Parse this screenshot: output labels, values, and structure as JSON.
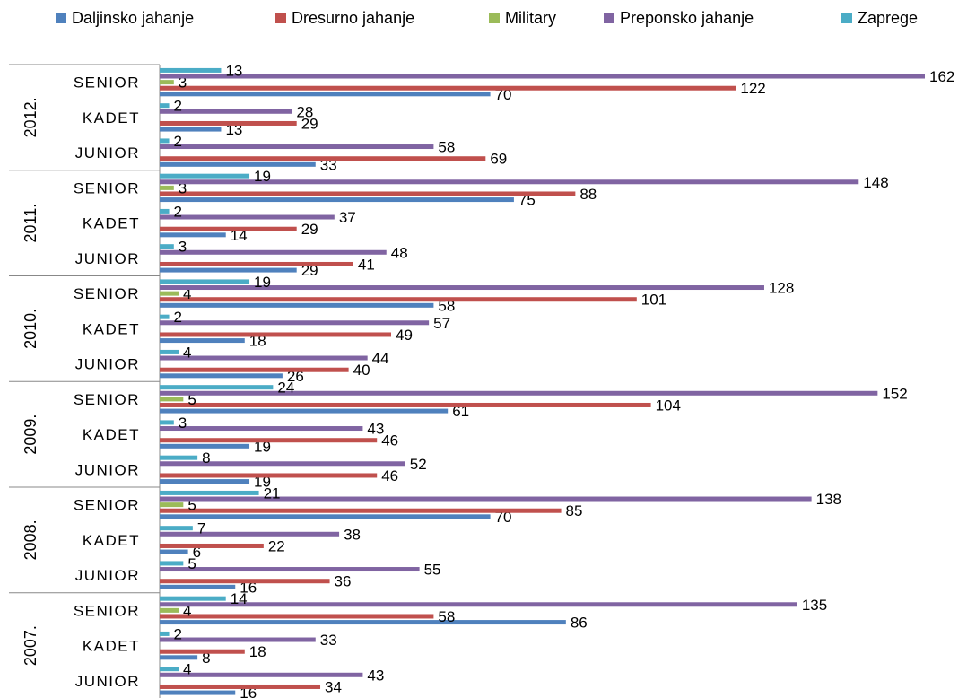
{
  "chart_data": {
    "type": "bar",
    "orientation": "horizontal",
    "title": "",
    "xlabel": "",
    "ylabel": "",
    "xlim": [
      0,
      162
    ],
    "grid": false,
    "legend_position": "top",
    "series_draw_order_bottom_to_top": [
      "Daljinsko jahanje",
      "Dresurno jahanje",
      "Military",
      "Preponsko jahanje",
      "Zaprege"
    ],
    "series": [
      {
        "name": "Daljinsko jahanje",
        "color": "#4F81BD"
      },
      {
        "name": "Dresurno jahanje",
        "color": "#C0504D"
      },
      {
        "name": "Military",
        "color": "#9BBB59"
      },
      {
        "name": "Preponsko jahanje",
        "color": "#8064A2"
      },
      {
        "name": "Zaprege",
        "color": "#4BACC6"
      }
    ],
    "legend": {
      "items": [
        {
          "label": "Daljinsko jahanje",
          "color": "#4F81BD"
        },
        {
          "label": "Dresurno jahanje",
          "color": "#C0504D"
        },
        {
          "label": "Military",
          "color": "#9BBB59"
        },
        {
          "label": "Preponsko jahanje",
          "color": "#8064A2"
        },
        {
          "label": "Zaprege",
          "color": "#4BACC6"
        }
      ]
    },
    "groups": [
      {
        "year": "2012.",
        "categories": [
          {
            "label": "SENIOR",
            "values": {
              "Daljinsko jahanje": 70,
              "Dresurno jahanje": 122,
              "Military": 3,
              "Preponsko jahanje": 162,
              "Zaprege": 13
            }
          },
          {
            "label": "KADET",
            "values": {
              "Daljinsko jahanje": 13,
              "Dresurno jahanje": 29,
              "Preponsko jahanje": 28,
              "Zaprege": 2
            }
          },
          {
            "label": "JUNIOR",
            "values": {
              "Daljinsko jahanje": 33,
              "Dresurno jahanje": 69,
              "Preponsko jahanje": 58,
              "Zaprege": 2
            }
          }
        ]
      },
      {
        "year": "2011.",
        "categories": [
          {
            "label": "SENIOR",
            "values": {
              "Daljinsko jahanje": 75,
              "Dresurno jahanje": 88,
              "Military": 3,
              "Preponsko jahanje": 148,
              "Zaprege": 19
            }
          },
          {
            "label": "KADET",
            "values": {
              "Daljinsko jahanje": 14,
              "Dresurno jahanje": 29,
              "Preponsko jahanje": 37,
              "Zaprege": 2
            }
          },
          {
            "label": "JUNIOR",
            "values": {
              "Daljinsko jahanje": 29,
              "Dresurno jahanje": 41,
              "Preponsko jahanje": 48,
              "Zaprege": 3
            }
          }
        ]
      },
      {
        "year": "2010.",
        "categories": [
          {
            "label": "SENIOR",
            "values": {
              "Daljinsko jahanje": 58,
              "Dresurno jahanje": 101,
              "Military": 4,
              "Preponsko jahanje": 128,
              "Zaprege": 19
            }
          },
          {
            "label": "KADET",
            "values": {
              "Daljinsko jahanje": 18,
              "Dresurno jahanje": 49,
              "Preponsko jahanje": 57,
              "Zaprege": 2
            }
          },
          {
            "label": "JUNIOR",
            "values": {
              "Daljinsko jahanje": 26,
              "Dresurno jahanje": 40,
              "Preponsko jahanje": 44,
              "Zaprege": 4
            }
          }
        ]
      },
      {
        "year": "2009.",
        "categories": [
          {
            "label": "SENIOR",
            "values": {
              "Daljinsko jahanje": 61,
              "Dresurno jahanje": 104,
              "Military": 5,
              "Preponsko jahanje": 152,
              "Zaprege": 24
            }
          },
          {
            "label": "KADET",
            "values": {
              "Daljinsko jahanje": 19,
              "Dresurno jahanje": 46,
              "Preponsko jahanje": 43,
              "Zaprege": 3
            }
          },
          {
            "label": "JUNIOR",
            "values": {
              "Daljinsko jahanje": 19,
              "Dresurno jahanje": 46,
              "Preponsko jahanje": 52,
              "Zaprege": 8
            }
          }
        ]
      },
      {
        "year": "2008.",
        "categories": [
          {
            "label": "SENIOR",
            "values": {
              "Daljinsko jahanje": 70,
              "Dresurno jahanje": 85,
              "Military": 5,
              "Preponsko jahanje": 138,
              "Zaprege": 21
            }
          },
          {
            "label": "KADET",
            "values": {
              "Daljinsko jahanje": 6,
              "Dresurno jahanje": 22,
              "Preponsko jahanje": 38,
              "Zaprege": 7
            }
          },
          {
            "label": "JUNIOR",
            "values": {
              "Daljinsko jahanje": 16,
              "Dresurno jahanje": 36,
              "Preponsko jahanje": 55,
              "Zaprege": 5
            }
          }
        ]
      },
      {
        "year": "2007.",
        "categories": [
          {
            "label": "SENIOR",
            "values": {
              "Daljinsko jahanje": 86,
              "Dresurno jahanje": 58,
              "Military": 4,
              "Preponsko jahanje": 135,
              "Zaprege": 14
            }
          },
          {
            "label": "KADET",
            "values": {
              "Daljinsko jahanje": 8,
              "Dresurno jahanje": 18,
              "Preponsko jahanje": 33,
              "Zaprege": 2
            }
          },
          {
            "label": "JUNIOR",
            "values": {
              "Daljinsko jahanje": 16,
              "Dresurno jahanje": 34,
              "Preponsko jahanje": 43,
              "Zaprege": 4
            }
          }
        ]
      }
    ]
  }
}
